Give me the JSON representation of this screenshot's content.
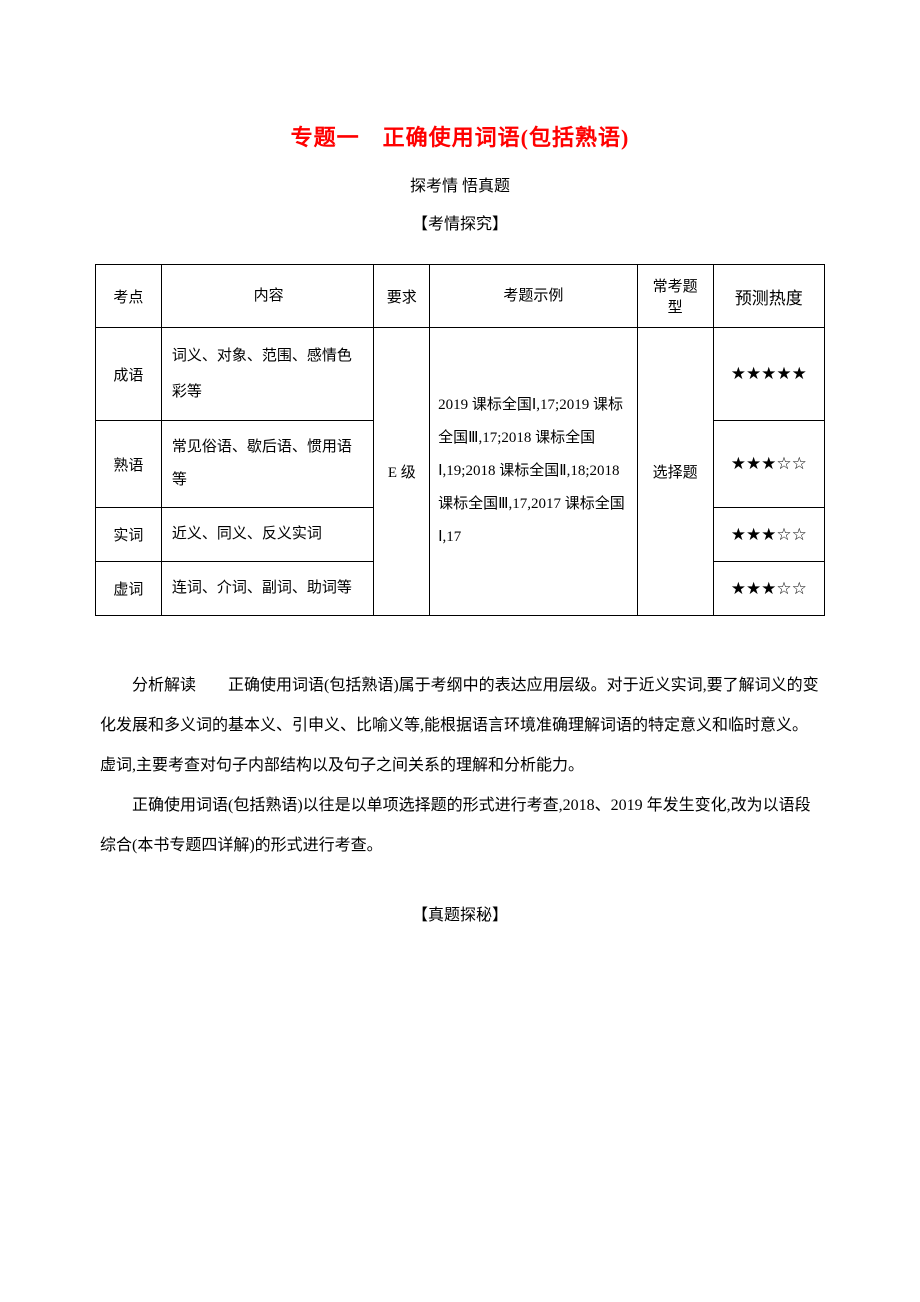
{
  "title": "专题一　正确使用词语(包括熟语)",
  "subtitle": "探考情 悟真题",
  "section_heading": "【考情探究】",
  "table": {
    "headers": {
      "col1": "考点",
      "col2": "内容",
      "col3": "要求",
      "col4": "考题示例",
      "col5": "常考题型",
      "col6": "预测热度"
    },
    "merged": {
      "req": "E 级",
      "example": "2019 课标全国Ⅰ,17;2019 课标全国Ⅲ,17;2018 课标全国Ⅰ,19;2018 课标全国Ⅱ,18;2018 课标全国Ⅲ,17,2017 课标全国Ⅰ,17",
      "type": "选择题"
    },
    "rows": [
      {
        "point": "成语",
        "content": "词义、对象、范围、感情色彩等",
        "heat": "★★★★★"
      },
      {
        "point": "熟语",
        "content": "常见俗语、歇后语、惯用语等",
        "heat": "★★★☆☆"
      },
      {
        "point": "实词",
        "content": "近义、同义、反义实词",
        "heat": "★★★☆☆"
      },
      {
        "point": "虚词",
        "content": "连词、介词、副词、助词等",
        "heat": "★★★☆☆"
      }
    ]
  },
  "analysis_label": "分析解读",
  "para1": "正确使用词语(包括熟语)属于考纲中的表达应用层级。对于近义实词,要了解词义的变化发展和多义词的基本义、引申义、比喻义等,能根据语言环境准确理解词语的特定意义和临时意义。虚词,主要考查对句子内部结构以及句子之间关系的理解和分析能力。",
  "para2": "正确使用词语(包括熟语)以往是以单项选择题的形式进行考查,2018、2019 年发生变化,改为以语段综合(本书专题四详解)的形式进行考查。",
  "footer_heading": "【真题探秘】"
}
